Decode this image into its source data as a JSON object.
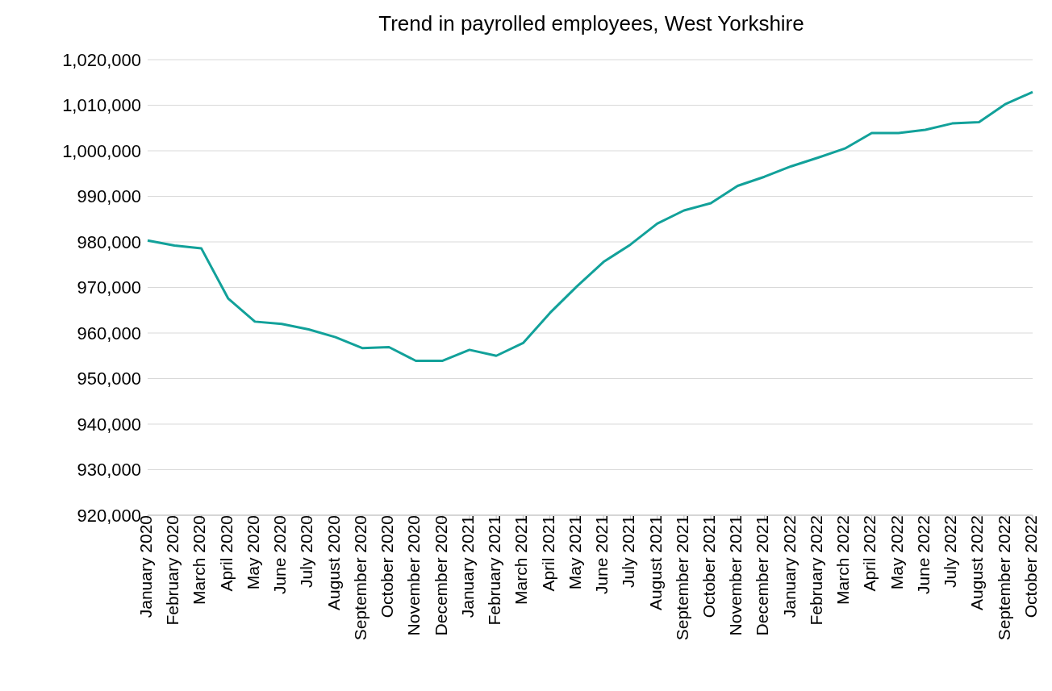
{
  "chart_data": {
    "type": "line",
    "title": "Trend in payrolled employees, West Yorkshire",
    "categories": [
      "January 2020",
      "February 2020",
      "March 2020",
      "April 2020",
      "May 2020",
      "June 2020",
      "July 2020",
      "August 2020",
      "September 2020",
      "October 2020",
      "November 2020",
      "December 2020",
      "January 2021",
      "February 2021",
      "March 2021",
      "April 2021",
      "May 2021",
      "June 2021",
      "July 2021",
      "August 2021",
      "September 2021",
      "October 2021",
      "November 2021",
      "December 2021",
      "January 2022",
      "February 2022",
      "March 2022",
      "April 2022",
      "May 2022",
      "June 2022",
      "July 2022",
      "August 2022",
      "September 2022",
      "October 2022"
    ],
    "series": [
      {
        "color": "#12a19a",
        "values": [
          980300,
          979200,
          978600,
          967600,
          962500,
          962000,
          960800,
          959100,
          956700,
          956900,
          953900,
          953900,
          956300,
          955000,
          957800,
          964400,
          970200,
          975600,
          979400,
          984000,
          986900,
          988500,
          992300,
          994300,
          996600,
          998500,
          1000500,
          1003900,
          1003900,
          1004600,
          1006000,
          1006300,
          1010300,
          1012900
        ]
      }
    ],
    "ylim": [
      920000,
      1020000
    ],
    "yticks": [
      {
        "value": 920000,
        "label": "920,000"
      },
      {
        "value": 930000,
        "label": "930,000"
      },
      {
        "value": 940000,
        "label": "940,000"
      },
      {
        "value": 950000,
        "label": "950,000"
      },
      {
        "value": 960000,
        "label": "960,000"
      },
      {
        "value": 970000,
        "label": "970,000"
      },
      {
        "value": 980000,
        "label": "980,000"
      },
      {
        "value": 990000,
        "label": "990,000"
      },
      {
        "value": 1000000,
        "label": "1,000,000"
      },
      {
        "value": 1010000,
        "label": "1,010,000"
      },
      {
        "value": 1020000,
        "label": "1,020,000"
      }
    ],
    "grid": "y",
    "marker": "none",
    "line_style": "solid"
  }
}
